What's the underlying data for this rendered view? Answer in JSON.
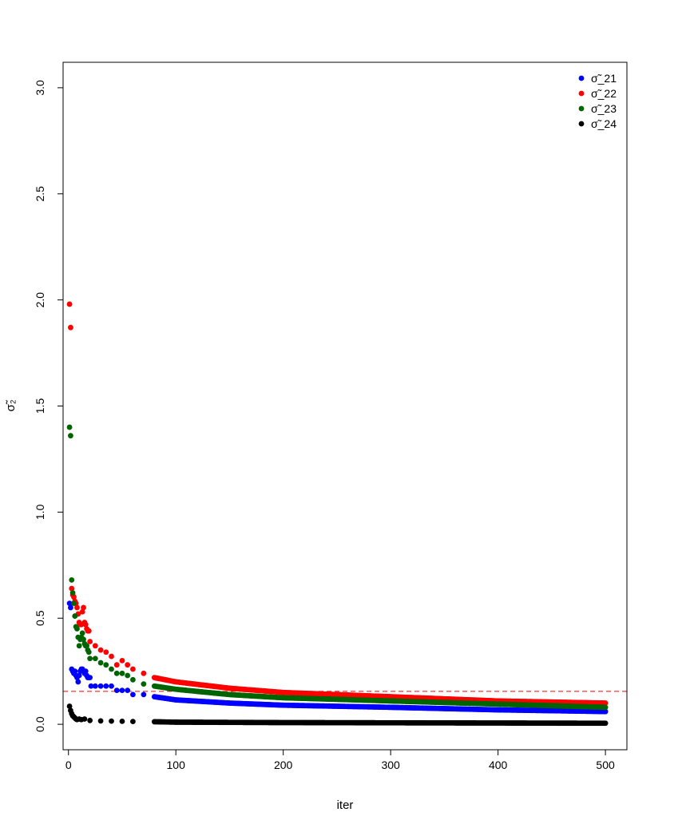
{
  "chart_data": {
    "type": "scatter",
    "title": "",
    "xlabel": "iter",
    "ylabel": "σ̃₂",
    "xlim": [
      -5,
      520
    ],
    "ylim": [
      -0.12,
      3.12
    ],
    "x_ticks": [
      0,
      100,
      200,
      300,
      400,
      500
    ],
    "x_tick_labels": [
      "0",
      "100",
      "200",
      "300",
      "400",
      "500"
    ],
    "y_ticks": [
      0.0,
      0.5,
      1.0,
      1.5,
      2.0,
      2.5,
      3.0
    ],
    "y_tick_labels": [
      "0.0",
      "0.5",
      "1.0",
      "1.5",
      "2.0",
      "2.5",
      "3.0"
    ],
    "reference_line": {
      "y": 0.155,
      "color": "#ff0000",
      "style": "dashed"
    },
    "legend_position": "top-right",
    "grid": false,
    "n_iter": 500,
    "series": [
      {
        "name": "σ̃_21",
        "color": "#0000ff",
        "early": [
          [
            1,
            0.57
          ],
          [
            2,
            0.55
          ],
          [
            3,
            0.26
          ],
          [
            4,
            0.25
          ],
          [
            5,
            0.24
          ],
          [
            6,
            0.25
          ],
          [
            7,
            0.23
          ],
          [
            8,
            0.22
          ],
          [
            9,
            0.2
          ],
          [
            10,
            0.23
          ],
          [
            11,
            0.25
          ],
          [
            12,
            0.26
          ],
          [
            13,
            0.26
          ],
          [
            14,
            0.25
          ],
          [
            15,
            0.24
          ],
          [
            16,
            0.25
          ],
          [
            17,
            0.23
          ],
          [
            18,
            0.22
          ],
          [
            19,
            0.22
          ],
          [
            20,
            0.22
          ],
          [
            21,
            0.18
          ],
          [
            25,
            0.18
          ],
          [
            30,
            0.18
          ],
          [
            35,
            0.18
          ],
          [
            40,
            0.18
          ],
          [
            45,
            0.16
          ],
          [
            50,
            0.16
          ],
          [
            55,
            0.16
          ],
          [
            60,
            0.14
          ],
          [
            70,
            0.14
          ],
          [
            80,
            0.13
          ]
        ],
        "tail": [
          [
            80,
            0.13
          ],
          [
            100,
            0.115
          ],
          [
            150,
            0.1
          ],
          [
            200,
            0.09
          ],
          [
            300,
            0.08
          ],
          [
            400,
            0.068
          ],
          [
            500,
            0.06
          ]
        ]
      },
      {
        "name": "σ̃_22",
        "color": "#ff0000",
        "early": [
          [
            1,
            1.98
          ],
          [
            2,
            1.87
          ],
          [
            3,
            0.64
          ],
          [
            4,
            0.61
          ],
          [
            5,
            0.6
          ],
          [
            6,
            0.58
          ],
          [
            7,
            0.57
          ],
          [
            8,
            0.55
          ],
          [
            9,
            0.52
          ],
          [
            10,
            0.48
          ],
          [
            11,
            0.47
          ],
          [
            12,
            0.47
          ],
          [
            13,
            0.53
          ],
          [
            14,
            0.55
          ],
          [
            15,
            0.48
          ],
          [
            16,
            0.47
          ],
          [
            17,
            0.45
          ],
          [
            18,
            0.44
          ],
          [
            19,
            0.44
          ],
          [
            20,
            0.39
          ],
          [
            25,
            0.37
          ],
          [
            30,
            0.35
          ],
          [
            35,
            0.34
          ],
          [
            40,
            0.32
          ],
          [
            45,
            0.28
          ],
          [
            50,
            0.3
          ],
          [
            55,
            0.28
          ],
          [
            60,
            0.26
          ],
          [
            70,
            0.24
          ],
          [
            80,
            0.22
          ]
        ],
        "tail": [
          [
            80,
            0.22
          ],
          [
            100,
            0.2
          ],
          [
            150,
            0.17
          ],
          [
            200,
            0.15
          ],
          [
            300,
            0.13
          ],
          [
            400,
            0.11
          ],
          [
            500,
            0.1
          ]
        ]
      },
      {
        "name": "σ̃_23",
        "color": "#006400",
        "early": [
          [
            1,
            1.4
          ],
          [
            2,
            1.36
          ],
          [
            3,
            0.68
          ],
          [
            4,
            0.62
          ],
          [
            5,
            0.57
          ],
          [
            6,
            0.51
          ],
          [
            7,
            0.46
          ],
          [
            8,
            0.45
          ],
          [
            9,
            0.41
          ],
          [
            10,
            0.37
          ],
          [
            11,
            0.4
          ],
          [
            12,
            0.41
          ],
          [
            13,
            0.43
          ],
          [
            14,
            0.4
          ],
          [
            15,
            0.38
          ],
          [
            16,
            0.37
          ],
          [
            17,
            0.37
          ],
          [
            18,
            0.35
          ],
          [
            19,
            0.34
          ],
          [
            20,
            0.31
          ],
          [
            25,
            0.31
          ],
          [
            30,
            0.29
          ],
          [
            35,
            0.28
          ],
          [
            40,
            0.26
          ],
          [
            45,
            0.24
          ],
          [
            50,
            0.24
          ],
          [
            55,
            0.23
          ],
          [
            60,
            0.21
          ],
          [
            70,
            0.19
          ],
          [
            80,
            0.18
          ]
        ],
        "tail": [
          [
            80,
            0.18
          ],
          [
            100,
            0.165
          ],
          [
            150,
            0.14
          ],
          [
            200,
            0.125
          ],
          [
            300,
            0.11
          ],
          [
            400,
            0.095
          ],
          [
            500,
            0.08
          ]
        ]
      },
      {
        "name": "σ̃_24",
        "color": "#000000",
        "early": [
          [
            1,
            0.085
          ],
          [
            2,
            0.065
          ],
          [
            3,
            0.05
          ],
          [
            4,
            0.04
          ],
          [
            5,
            0.035
          ],
          [
            6,
            0.03
          ],
          [
            7,
            0.025
          ],
          [
            8,
            0.022
          ],
          [
            10,
            0.025
          ],
          [
            12,
            0.022
          ],
          [
            15,
            0.025
          ],
          [
            20,
            0.018
          ],
          [
            30,
            0.016
          ],
          [
            40,
            0.015
          ],
          [
            50,
            0.014
          ],
          [
            60,
            0.013
          ],
          [
            80,
            0.012
          ]
        ],
        "tail": [
          [
            80,
            0.012
          ],
          [
            100,
            0.01
          ],
          [
            200,
            0.008
          ],
          [
            300,
            0.007
          ],
          [
            400,
            0.006
          ],
          [
            500,
            0.005
          ]
        ]
      }
    ]
  }
}
